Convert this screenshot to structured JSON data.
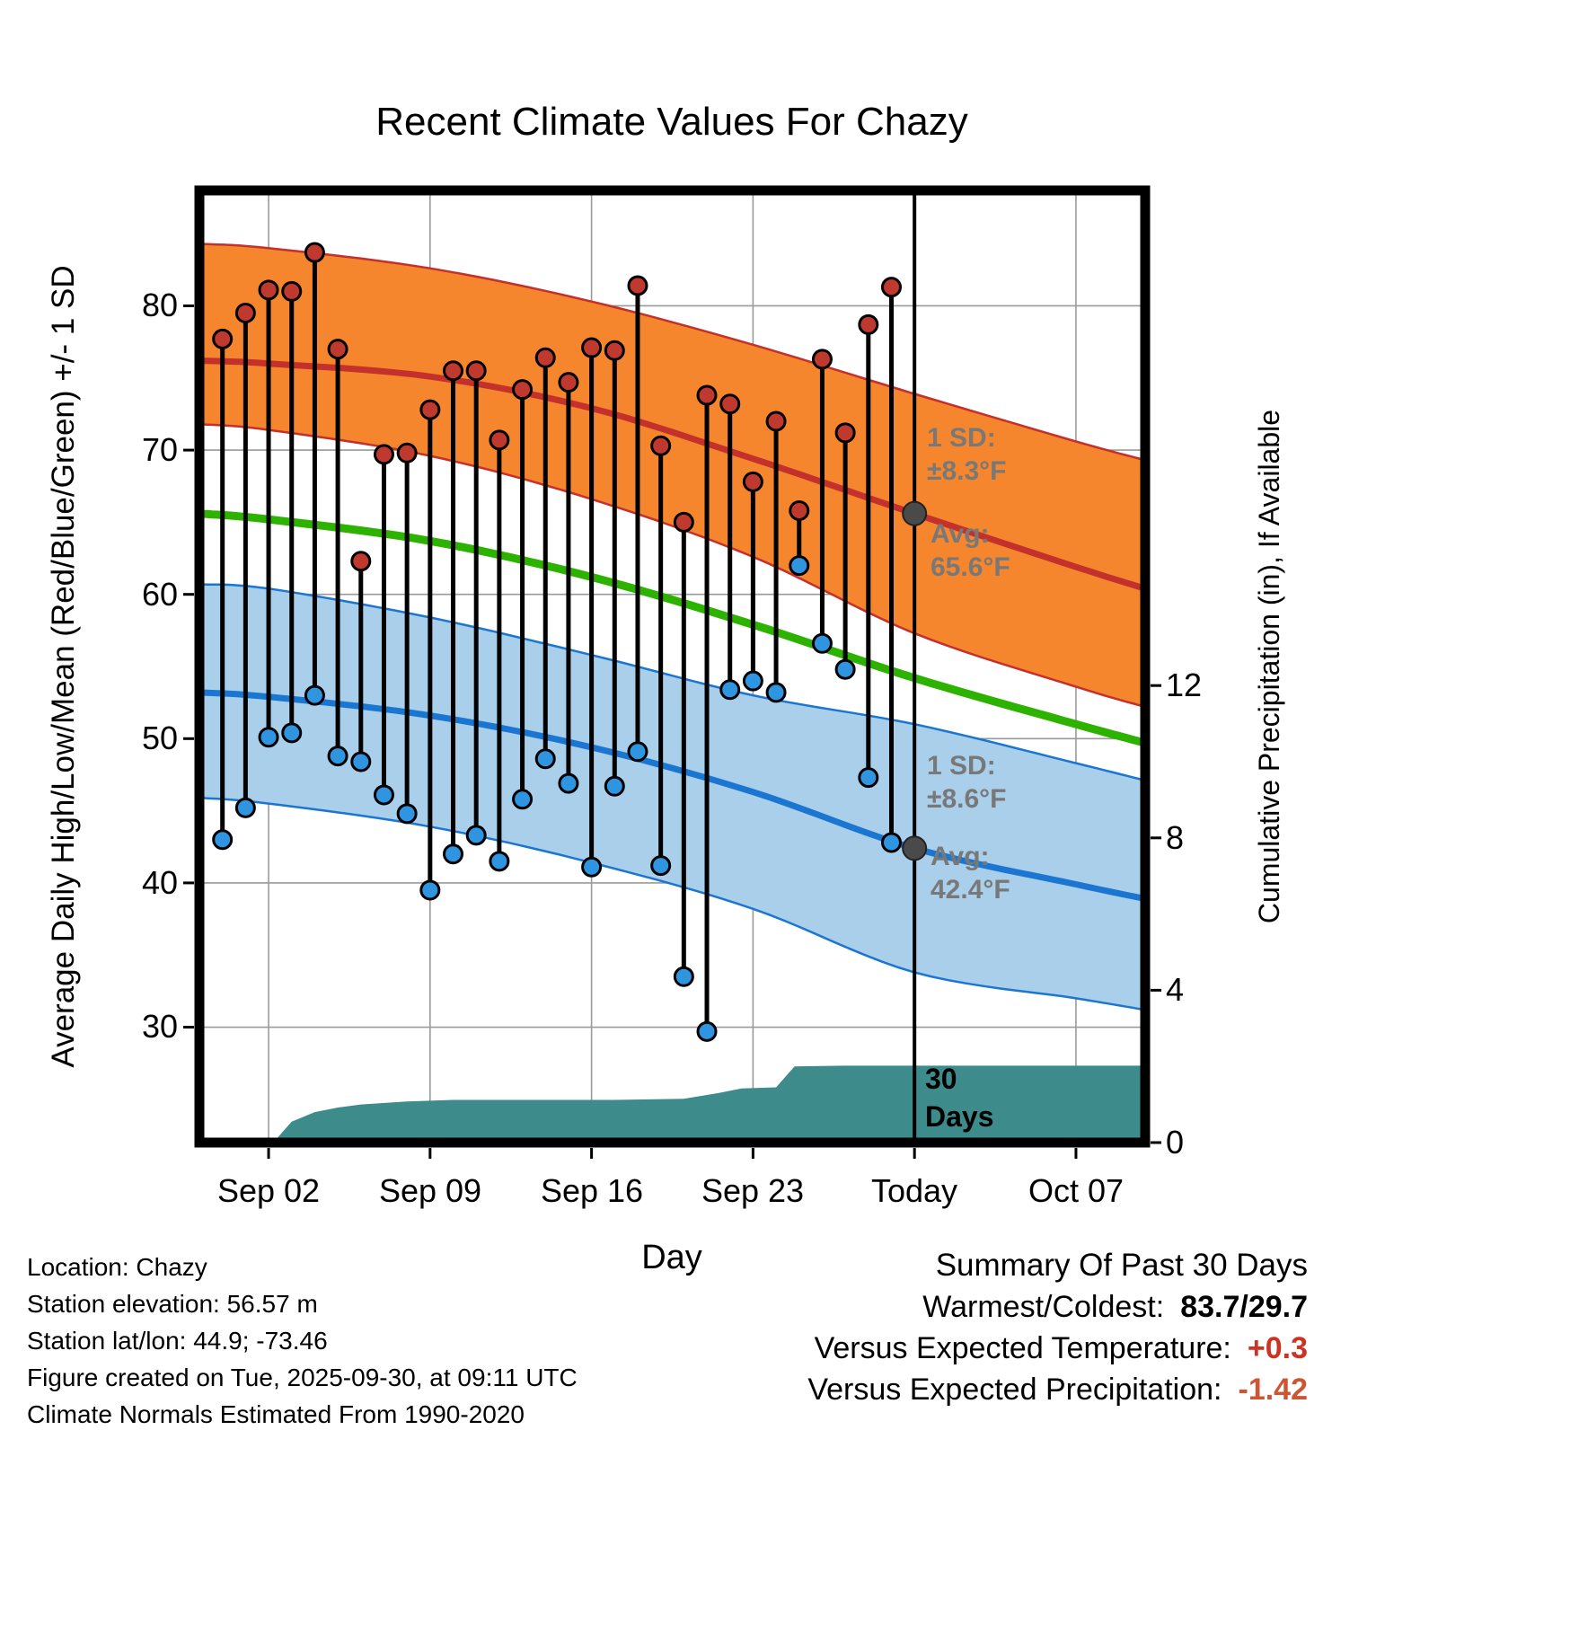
{
  "chart_data": {
    "type": "line",
    "subtype": "climate-high-low-range-with-normals",
    "title": "Recent Climate Values For Chazy",
    "xlabel": "Day",
    "ylabel_left": "Average Daily High/Low/Mean (Red/Blue/Green) +/- 1 SD",
    "ylabel_right": "Cumulative Precipitation (in), If Available",
    "x_tick_labels": [
      "Sep 02",
      "Sep 09",
      "Sep 16",
      "Sep 23",
      "Today",
      "Oct 07"
    ],
    "x_tick_days": [
      3,
      10,
      17,
      24,
      31,
      38
    ],
    "left_tick_values": [
      30,
      40,
      50,
      60,
      70,
      80
    ],
    "right_tick_values": [
      0,
      4,
      8,
      12
    ],
    "temp_axis_range": [
      22,
      88
    ],
    "day_axis_range": [
      0,
      41
    ],
    "precip_axis_range": [
      0,
      25
    ],
    "grid": true,
    "today_day": 31,
    "normals": {
      "high_upper": [
        [
          0,
          84.3
        ],
        [
          3,
          84.0
        ],
        [
          10,
          82.6
        ],
        [
          17,
          80.3
        ],
        [
          24,
          77.3
        ],
        [
          31,
          73.9
        ],
        [
          38,
          70.6
        ],
        [
          41,
          69.3
        ]
      ],
      "high_mean": [
        [
          0,
          76.2
        ],
        [
          3,
          76.0
        ],
        [
          10,
          75.1
        ],
        [
          17,
          72.9
        ],
        [
          24,
          69.4
        ],
        [
          31,
          65.6
        ],
        [
          38,
          61.9
        ],
        [
          41,
          60.4
        ]
      ],
      "high_lower": [
        [
          0,
          71.8
        ],
        [
          3,
          71.4
        ],
        [
          10,
          69.6
        ],
        [
          17,
          66.6
        ],
        [
          24,
          62.6
        ],
        [
          31,
          57.3
        ],
        [
          38,
          53.6
        ],
        [
          41,
          52.2
        ]
      ],
      "mean": [
        [
          0,
          65.6
        ],
        [
          3,
          65.2
        ],
        [
          10,
          63.7
        ],
        [
          17,
          61.2
        ],
        [
          24,
          57.9
        ],
        [
          31,
          54.2
        ],
        [
          38,
          51.0
        ],
        [
          41,
          49.7
        ]
      ],
      "low_upper": [
        [
          0,
          60.7
        ],
        [
          3,
          60.4
        ],
        [
          10,
          58.4
        ],
        [
          17,
          55.8
        ],
        [
          24,
          53.0
        ],
        [
          31,
          51.0
        ],
        [
          38,
          48.3
        ],
        [
          41,
          47.1
        ]
      ],
      "low_mean": [
        [
          0,
          53.2
        ],
        [
          3,
          52.9
        ],
        [
          10,
          51.6
        ],
        [
          17,
          49.4
        ],
        [
          24,
          46.3
        ],
        [
          31,
          42.4
        ],
        [
          38,
          39.9
        ],
        [
          41,
          38.9
        ]
      ],
      "low_lower": [
        [
          0,
          45.9
        ],
        [
          3,
          45.5
        ],
        [
          10,
          43.9
        ],
        [
          17,
          41.4
        ],
        [
          24,
          38.2
        ],
        [
          31,
          33.8
        ],
        [
          38,
          32.0
        ],
        [
          41,
          31.2
        ]
      ]
    },
    "daily_high_low": [
      {
        "day": 1,
        "high": 77.7,
        "low": 43.0
      },
      {
        "day": 2,
        "high": 79.5,
        "low": 45.2
      },
      {
        "day": 3,
        "high": 81.1,
        "low": 50.1
      },
      {
        "day": 4,
        "high": 81.0,
        "low": 50.4
      },
      {
        "day": 5,
        "high": 83.7,
        "low": 53.0
      },
      {
        "day": 6,
        "high": 77.0,
        "low": 48.8
      },
      {
        "day": 7,
        "high": 62.3,
        "low": 48.4
      },
      {
        "day": 8,
        "high": 69.7,
        "low": 46.1
      },
      {
        "day": 9,
        "high": 69.8,
        "low": 44.8
      },
      {
        "day": 10,
        "high": 72.8,
        "low": 39.5
      },
      {
        "day": 11,
        "high": 75.5,
        "low": 42.0
      },
      {
        "day": 12,
        "high": 75.5,
        "low": 43.3
      },
      {
        "day": 13,
        "high": 70.7,
        "low": 41.5
      },
      {
        "day": 14,
        "high": 74.2,
        "low": 45.8
      },
      {
        "day": 15,
        "high": 76.4,
        "low": 48.6
      },
      {
        "day": 16,
        "high": 74.7,
        "low": 46.9
      },
      {
        "day": 17,
        "high": 77.1,
        "low": 41.1
      },
      {
        "day": 18,
        "high": 76.9,
        "low": 46.7
      },
      {
        "day": 19,
        "high": 81.4,
        "low": 49.1
      },
      {
        "day": 20,
        "high": 70.3,
        "low": 41.2
      },
      {
        "day": 21,
        "high": 65.0,
        "low": 33.5
      },
      {
        "day": 22,
        "high": 73.8,
        "low": 29.7
      },
      {
        "day": 23,
        "high": 73.2,
        "low": 53.4
      },
      {
        "day": 24,
        "high": 67.8,
        "low": 54.0
      },
      {
        "day": 25,
        "high": 72.0,
        "low": 53.2
      },
      {
        "day": 26,
        "high": 65.8,
        "low": 62.0
      },
      {
        "day": 27,
        "high": 76.3,
        "low": 56.6
      },
      {
        "day": 28,
        "high": 71.2,
        "low": 54.8
      },
      {
        "day": 29,
        "high": 78.7,
        "low": 47.3
      },
      {
        "day": 30,
        "high": 81.3,
        "low": 42.8
      }
    ],
    "precip_cumulative": [
      [
        0,
        0
      ],
      [
        3.2,
        0
      ],
      [
        4,
        0.55
      ],
      [
        5,
        0.8
      ],
      [
        6,
        0.92
      ],
      [
        7,
        1.0
      ],
      [
        9,
        1.08
      ],
      [
        11,
        1.12
      ],
      [
        18,
        1.12
      ],
      [
        21,
        1.15
      ],
      [
        22.5,
        1.3
      ],
      [
        23.5,
        1.42
      ],
      [
        25,
        1.45
      ],
      [
        25.8,
        2.0
      ],
      [
        28,
        2.02
      ],
      [
        41,
        2.02
      ]
    ],
    "annotations": {
      "high_sd_line1": "1 SD:",
      "high_sd_line2": "±8.3°F",
      "high_avg_line1": "Avg:",
      "high_avg_line2": "65.6°F",
      "high_avg_value": 65.6,
      "low_sd_line1": "1 SD:",
      "low_sd_line2": "±8.6°F",
      "low_avg_line1": "Avg:",
      "low_avg_line2": "42.4°F",
      "low_avg_value": 42.4,
      "period_line1": "30",
      "period_line2": "Days"
    },
    "colors": {
      "high_band": "#f5862d",
      "high_line": "#c4302b",
      "low_band": "#a9cfeb",
      "low_line": "#1b76d1",
      "mean_line": "#2db200",
      "precip_fill": "#3d8b8b",
      "high_dot": "#c0392f",
      "low_dot": "#2f95e0",
      "avg_dot": "#4a4a4a",
      "grid": "#9a9a9a"
    }
  },
  "footer_left": {
    "location": "Location: Chazy",
    "elevation": "Station elevation: 56.57 m",
    "latlon": "Station lat/lon: 44.9; -73.46",
    "created": "Figure created on Tue, 2025-09-30, at 09:11 UTC",
    "normals_note": "Climate Normals Estimated From 1990-2020"
  },
  "summary": {
    "title": "Summary Of Past 30 Days",
    "warmest_coldest_label": "Warmest/Coldest:",
    "warmest_coldest_value": "83.7/29.7",
    "vs_temp_label": "Versus Expected Temperature:",
    "vs_temp_value": "+0.3",
    "vs_temp_color": "#cc3322",
    "vs_precip_label": "Versus Expected Precipitation:",
    "vs_precip_value": "-1.42",
    "vs_precip_color": "#cc5533"
  }
}
